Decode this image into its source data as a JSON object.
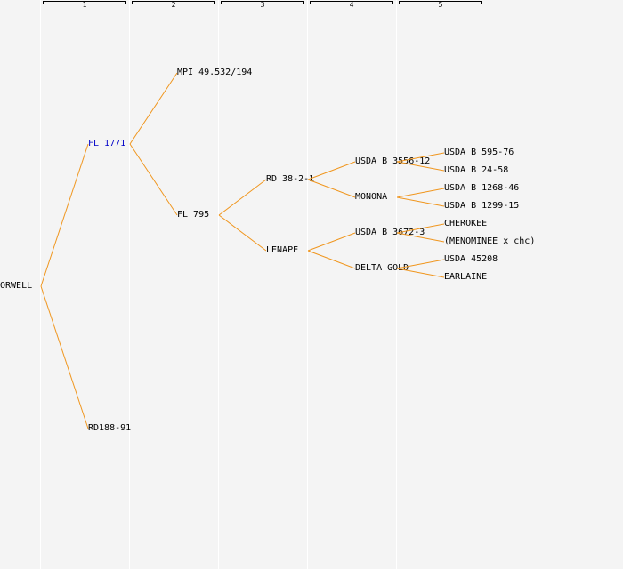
{
  "generations": [
    "1",
    "2",
    "3",
    "4",
    "5"
  ],
  "colors": {
    "link": "#f0961e",
    "highlight": "#0000c8",
    "background": "#f4f4f4"
  },
  "tree": {
    "label": "ORWELL",
    "children": [
      {
        "label": "FL 1771",
        "highlight": true,
        "children": [
          {
            "label": "MPI 49.532/194"
          },
          {
            "label": "FL 795",
            "children": [
              {
                "label": "RD 38-2-1",
                "children": [
                  {
                    "label": "USDA B 3556-12",
                    "children": [
                      {
                        "label": "USDA B 595-76"
                      },
                      {
                        "label": "USDA B 24-58"
                      }
                    ]
                  },
                  {
                    "label": "MONONA",
                    "children": [
                      {
                        "label": "USDA B 1268-46"
                      },
                      {
                        "label": "USDA B 1299-15"
                      }
                    ]
                  }
                ]
              },
              {
                "label": "LENAPE",
                "children": [
                  {
                    "label": "USDA B 3672-3",
                    "children": [
                      {
                        "label": "CHEROKEE"
                      },
                      {
                        "label": "(MENOMINEE x chc)"
                      }
                    ]
                  },
                  {
                    "label": "DELTA GOLD",
                    "children": [
                      {
                        "label": "USDA 45208"
                      },
                      {
                        "label": "EARLAINE"
                      }
                    ]
                  }
                ]
              }
            ]
          }
        ]
      },
      {
        "label": "RD188-91"
      }
    ]
  }
}
